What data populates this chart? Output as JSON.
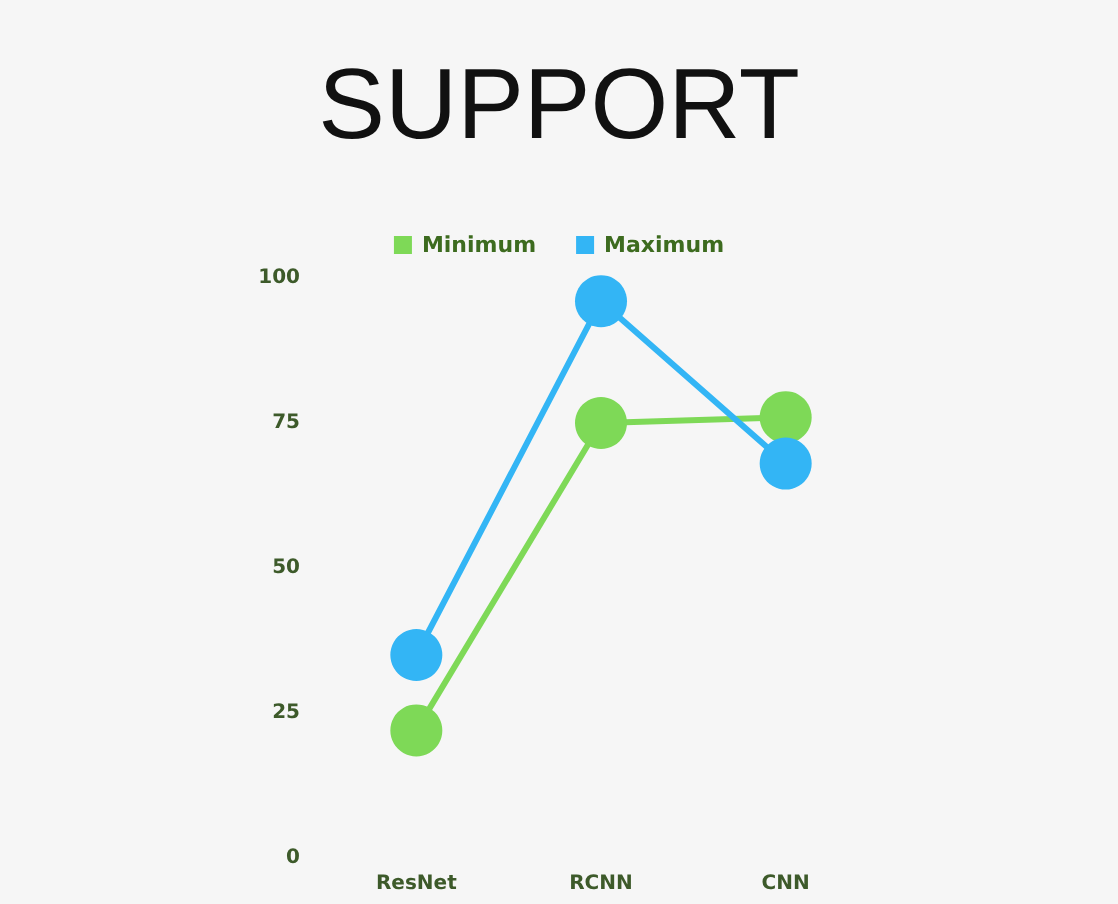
{
  "chart_data": {
    "type": "line",
    "title": "SUPPORT",
    "categories": [
      "ResNet",
      "RCNN",
      "CNN"
    ],
    "series": [
      {
        "name": "Minimum",
        "color": "#7ed957",
        "values": [
          22,
          75,
          76
        ]
      },
      {
        "name": "Maximum",
        "color": "#33b5f5",
        "values": [
          35,
          96,
          68
        ]
      }
    ],
    "ylim": [
      0,
      100
    ],
    "yticks": [
      0,
      25,
      50,
      75,
      100
    ],
    "grid": false,
    "legend": "top",
    "marker": "circle",
    "line_style": "solid"
  }
}
